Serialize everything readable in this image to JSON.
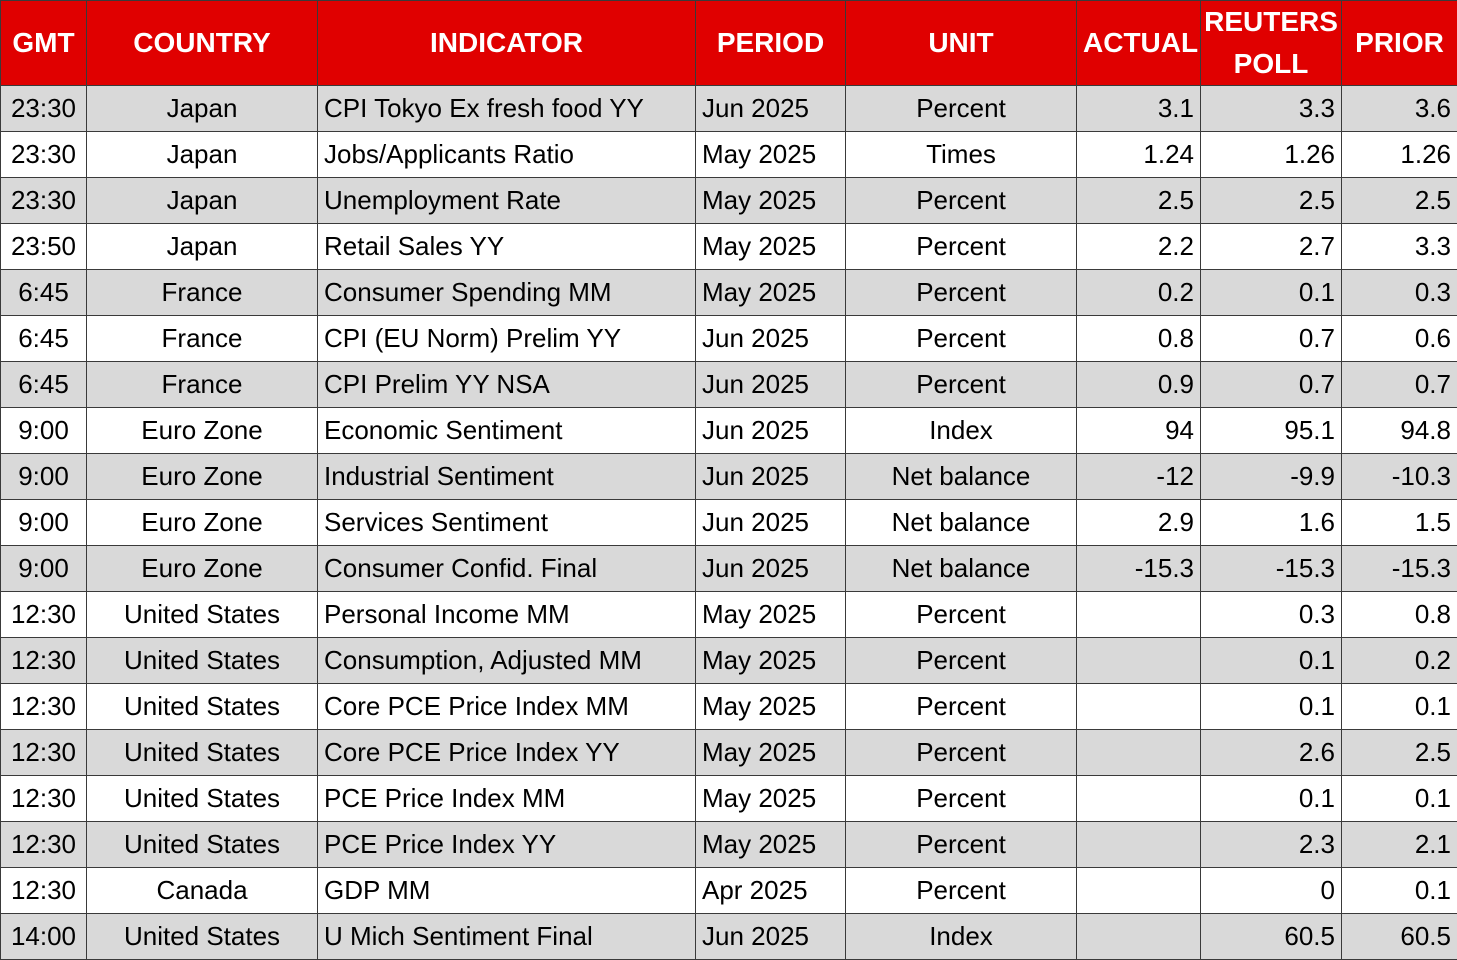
{
  "header": {
    "gmt": "GMT",
    "country": "COUNTRY",
    "indicator": "INDICATOR",
    "period": "PERIOD",
    "unit": "UNIT",
    "actual": "ACTUAL",
    "reuters_poll": "REUTERS POLL",
    "prior": "PRIOR"
  },
  "rows": [
    {
      "gmt": "23:30",
      "country": "Japan",
      "indicator": "CPI Tokyo Ex fresh food YY",
      "period": "Jun 2025",
      "unit": "Percent",
      "actual": "3.1",
      "poll": "3.3",
      "prior": "3.6"
    },
    {
      "gmt": "23:30",
      "country": "Japan",
      "indicator": "Jobs/Applicants Ratio",
      "period": "May 2025",
      "unit": "Times",
      "actual": "1.24",
      "poll": "1.26",
      "prior": "1.26"
    },
    {
      "gmt": "23:30",
      "country": "Japan",
      "indicator": "Unemployment Rate",
      "period": "May 2025",
      "unit": "Percent",
      "actual": "2.5",
      "poll": "2.5",
      "prior": "2.5"
    },
    {
      "gmt": "23:50",
      "country": "Japan",
      "indicator": "Retail Sales YY",
      "period": "May 2025",
      "unit": "Percent",
      "actual": "2.2",
      "poll": "2.7",
      "prior": "3.3"
    },
    {
      "gmt": "6:45",
      "country": "France",
      "indicator": "Consumer Spending MM",
      "period": "May 2025",
      "unit": "Percent",
      "actual": "0.2",
      "poll": "0.1",
      "prior": "0.3"
    },
    {
      "gmt": "6:45",
      "country": "France",
      "indicator": "CPI (EU Norm) Prelim YY",
      "period": "Jun 2025",
      "unit": "Percent",
      "actual": "0.8",
      "poll": "0.7",
      "prior": "0.6"
    },
    {
      "gmt": "6:45",
      "country": "France",
      "indicator": "CPI Prelim YY NSA",
      "period": "Jun 2025",
      "unit": "Percent",
      "actual": "0.9",
      "poll": "0.7",
      "prior": "0.7"
    },
    {
      "gmt": "9:00",
      "country": "Euro Zone",
      "indicator": "Economic Sentiment",
      "period": "Jun 2025",
      "unit": "Index",
      "actual": "94",
      "poll": "95.1",
      "prior": "94.8"
    },
    {
      "gmt": "9:00",
      "country": "Euro Zone",
      "indicator": "Industrial Sentiment",
      "period": "Jun 2025",
      "unit": "Net balance",
      "actual": "-12",
      "poll": "-9.9",
      "prior": "-10.3"
    },
    {
      "gmt": "9:00",
      "country": "Euro Zone",
      "indicator": "Services Sentiment",
      "period": "Jun 2025",
      "unit": "Net balance",
      "actual": "2.9",
      "poll": "1.6",
      "prior": "1.5"
    },
    {
      "gmt": "9:00",
      "country": "Euro Zone",
      "indicator": "Consumer Confid. Final",
      "period": "Jun 2025",
      "unit": "Net balance",
      "actual": "-15.3",
      "poll": "-15.3",
      "prior": "-15.3"
    },
    {
      "gmt": "12:30",
      "country": "United States",
      "indicator": "Personal Income MM",
      "period": "May 2025",
      "unit": "Percent",
      "actual": "",
      "poll": "0.3",
      "prior": "0.8"
    },
    {
      "gmt": "12:30",
      "country": "United States",
      "indicator": "Consumption, Adjusted MM",
      "period": "May 2025",
      "unit": "Percent",
      "actual": "",
      "poll": "0.1",
      "prior": "0.2"
    },
    {
      "gmt": "12:30",
      "country": "United States",
      "indicator": "Core PCE Price Index MM",
      "period": "May 2025",
      "unit": "Percent",
      "actual": "",
      "poll": "0.1",
      "prior": "0.1"
    },
    {
      "gmt": "12:30",
      "country": "United States",
      "indicator": "Core PCE Price Index YY",
      "period": "May 2025",
      "unit": "Percent",
      "actual": "",
      "poll": "2.6",
      "prior": "2.5"
    },
    {
      "gmt": "12:30",
      "country": "United States",
      "indicator": "PCE Price Index MM",
      "period": "May 2025",
      "unit": "Percent",
      "actual": "",
      "poll": "0.1",
      "prior": "0.1"
    },
    {
      "gmt": "12:30",
      "country": "United States",
      "indicator": "PCE Price Index YY",
      "period": "May 2025",
      "unit": "Percent",
      "actual": "",
      "poll": "2.3",
      "prior": "2.1"
    },
    {
      "gmt": "12:30",
      "country": "Canada",
      "indicator": "GDP MM",
      "period": "Apr 2025",
      "unit": "Percent",
      "actual": "",
      "poll": "0",
      "prior": "0.1"
    },
    {
      "gmt": "14:00",
      "country": "United States",
      "indicator": "U Mich Sentiment Final",
      "period": "Jun 2025",
      "unit": "Index",
      "actual": "",
      "poll": "60.5",
      "prior": "60.5"
    }
  ],
  "colors": {
    "header_bg": "#e00000",
    "header_text": "#ffffff",
    "row_shade": "#d9d9d9",
    "row_plain": "#ffffff",
    "border": "#3a3a3a"
  }
}
